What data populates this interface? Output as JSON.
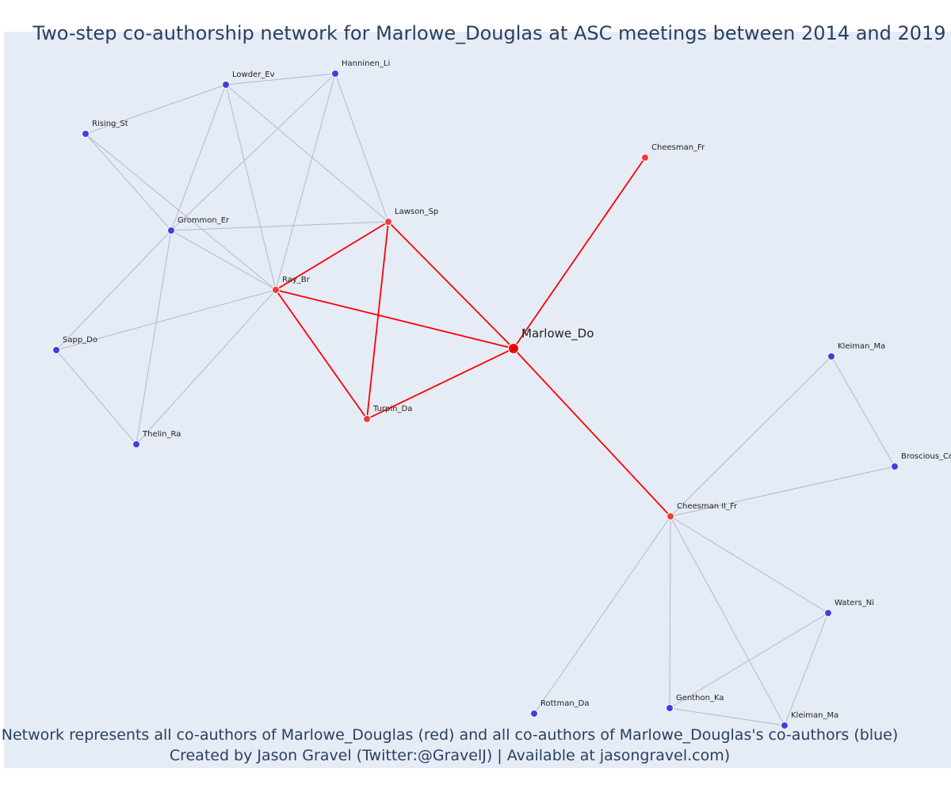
{
  "title": "Two-step co-authorship network for Marlowe_Douglas at ASC meetings between 2014 and 2019",
  "caption_line1": "Network represents all co-authors of Marlowe_Douglas (red) and all co-authors of Marlowe_Douglas's co-authors (blue)",
  "caption_line2": "Created by Jason Gravel (Twitter:@GravelJ) | Available at jasongravel.com)",
  "colors": {
    "focal": "#ff0000",
    "coauthor": "#ef3b3b",
    "second_step": "#4040e0",
    "red_edge": "#ff0000",
    "gray_edge": "#b4b8c8",
    "background": "#e5ecf6"
  },
  "nodes": [
    {
      "id": "marlowe",
      "label": "Marlowe_Do",
      "group": "focal"
    },
    {
      "id": "cheesman_fr",
      "label": "Cheesman_Fr",
      "group": "coauthor"
    },
    {
      "id": "lawson",
      "label": "Lawson_Sp",
      "group": "coauthor"
    },
    {
      "id": "ray",
      "label": "Ray_Br",
      "group": "coauthor"
    },
    {
      "id": "turpin",
      "label": "Turpin_Da",
      "group": "coauthor"
    },
    {
      "id": "cheesman_ii",
      "label": "Cheesman II_Fr",
      "group": "coauthor"
    },
    {
      "id": "hanninen",
      "label": "Hanninen_Li",
      "group": "second_step"
    },
    {
      "id": "lowder",
      "label": "Lowder_Ev",
      "group": "second_step"
    },
    {
      "id": "rising",
      "label": "Rising_St",
      "group": "second_step"
    },
    {
      "id": "grommon",
      "label": "Grommon_Er",
      "group": "second_step"
    },
    {
      "id": "sapp",
      "label": "Sapp_Do",
      "group": "second_step"
    },
    {
      "id": "thelin",
      "label": "Thelin_Ra",
      "group": "second_step"
    },
    {
      "id": "kleiman_top",
      "label": "Kleiman_Ma",
      "group": "second_step"
    },
    {
      "id": "broscious",
      "label": "Broscious_Cc",
      "group": "second_step"
    },
    {
      "id": "waters",
      "label": "Waters_Ni",
      "group": "second_step"
    },
    {
      "id": "genthon",
      "label": "Genthon_Ka",
      "group": "second_step"
    },
    {
      "id": "kleiman_bottom",
      "label": "Kleiman_Ma",
      "group": "second_step"
    },
    {
      "id": "rottman",
      "label": "Rottman_Da",
      "group": "second_step"
    }
  ],
  "edges": [
    {
      "source": "marlowe",
      "target": "cheesman_fr",
      "type": "red"
    },
    {
      "source": "marlowe",
      "target": "lawson",
      "type": "red"
    },
    {
      "source": "marlowe",
      "target": "ray",
      "type": "red"
    },
    {
      "source": "marlowe",
      "target": "turpin",
      "type": "red"
    },
    {
      "source": "marlowe",
      "target": "cheesman_ii",
      "type": "red"
    },
    {
      "source": "ray",
      "target": "lawson",
      "type": "red"
    },
    {
      "source": "ray",
      "target": "turpin",
      "type": "red"
    },
    {
      "source": "lawson",
      "target": "turpin",
      "type": "red"
    },
    {
      "source": "lowder",
      "target": "hanninen",
      "type": "gray"
    },
    {
      "source": "lowder",
      "target": "rising",
      "type": "gray"
    },
    {
      "source": "lowder",
      "target": "lawson",
      "type": "gray"
    },
    {
      "source": "lowder",
      "target": "ray",
      "type": "gray"
    },
    {
      "source": "lowder",
      "target": "grommon",
      "type": "gray"
    },
    {
      "source": "hanninen",
      "target": "lawson",
      "type": "gray"
    },
    {
      "source": "hanninen",
      "target": "ray",
      "type": "gray"
    },
    {
      "source": "hanninen",
      "target": "grommon",
      "type": "gray"
    },
    {
      "source": "rising",
      "target": "grommon",
      "type": "gray"
    },
    {
      "source": "rising",
      "target": "ray",
      "type": "gray"
    },
    {
      "source": "grommon",
      "target": "lawson",
      "type": "gray"
    },
    {
      "source": "grommon",
      "target": "ray",
      "type": "gray"
    },
    {
      "source": "grommon",
      "target": "sapp",
      "type": "gray"
    },
    {
      "source": "grommon",
      "target": "thelin",
      "type": "gray"
    },
    {
      "source": "sapp",
      "target": "ray",
      "type": "gray"
    },
    {
      "source": "sapp",
      "target": "thelin",
      "type": "gray"
    },
    {
      "source": "thelin",
      "target": "ray",
      "type": "gray"
    },
    {
      "source": "cheesman_ii",
      "target": "kleiman_top",
      "type": "gray"
    },
    {
      "source": "cheesman_ii",
      "target": "broscious",
      "type": "gray"
    },
    {
      "source": "kleiman_top",
      "target": "broscious",
      "type": "gray"
    },
    {
      "source": "cheesman_ii",
      "target": "waters",
      "type": "gray"
    },
    {
      "source": "cheesman_ii",
      "target": "genthon",
      "type": "gray"
    },
    {
      "source": "cheesman_ii",
      "target": "kleiman_bottom",
      "type": "gray"
    },
    {
      "source": "cheesman_ii",
      "target": "rottman",
      "type": "gray"
    },
    {
      "source": "waters",
      "target": "genthon",
      "type": "gray"
    },
    {
      "source": "waters",
      "target": "kleiman_bottom",
      "type": "gray"
    },
    {
      "source": "genthon",
      "target": "kleiman_bottom",
      "type": "gray"
    }
  ]
}
